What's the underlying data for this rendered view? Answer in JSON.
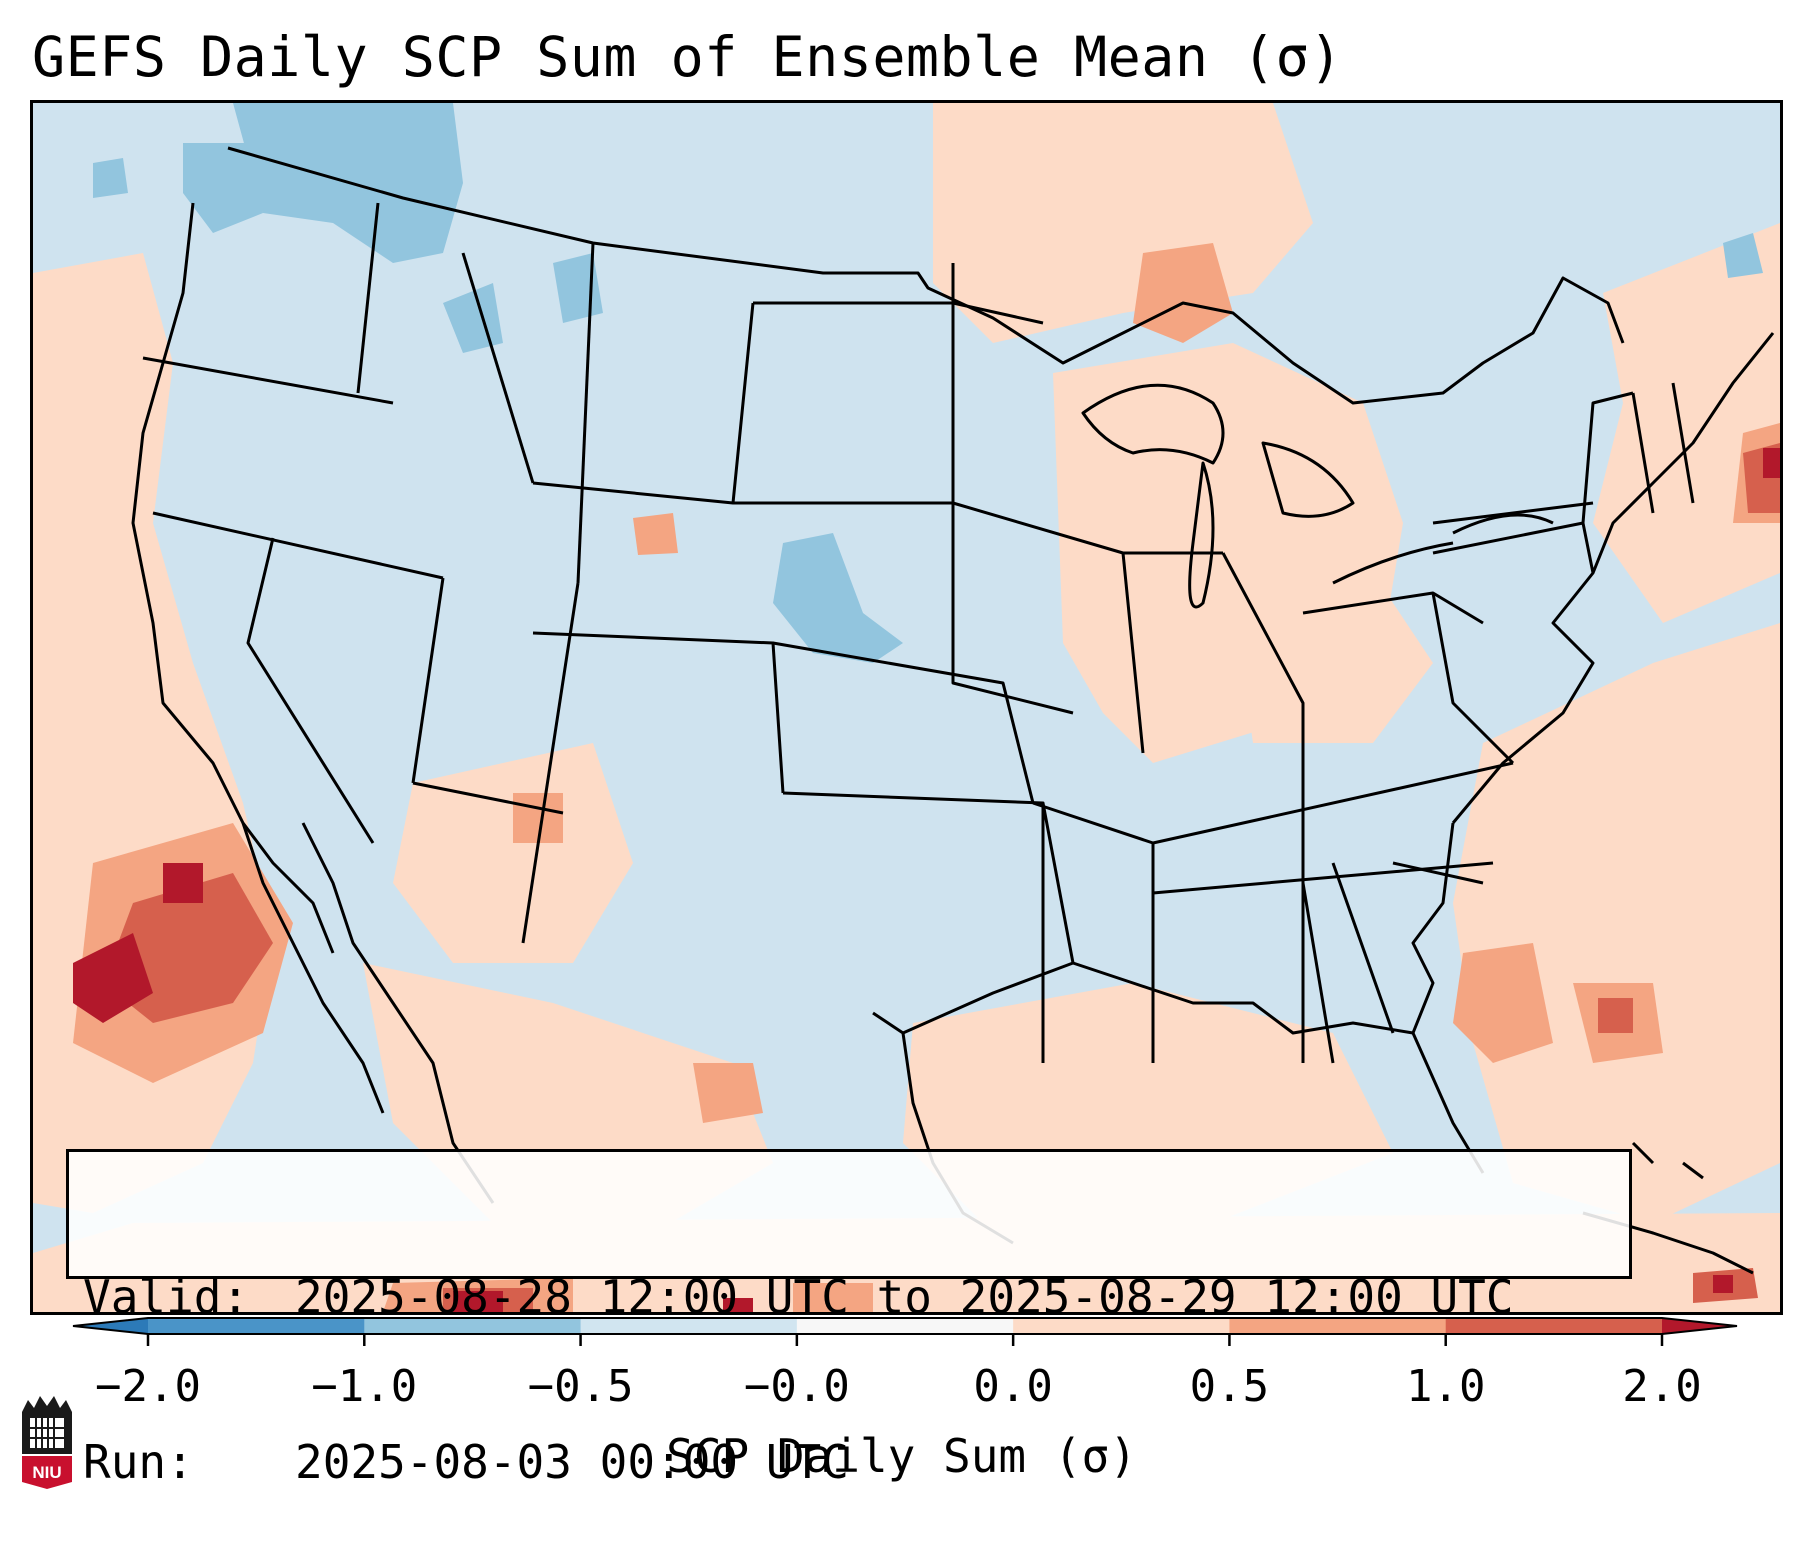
{
  "title": "GEFS Daily SCP Sum of Ensemble Mean (σ)",
  "info": {
    "valid_key": "Valid:",
    "valid_value": "2025-08-28 12:00 UTC to 2025-08-29 12:00 UTC",
    "run_key": "Run:",
    "run_value": "2025-08-03 00:00 UTC"
  },
  "colorbar": {
    "label": "SCP Daily Sum (σ)",
    "ticks": [
      "−2.0",
      "−1.0",
      "−0.5",
      "−0.0",
      "0.0",
      "0.5",
      "1.0",
      "2.0"
    ],
    "bins": [
      {
        "range": "< -2.0",
        "color": "#2c7ab8"
      },
      {
        "range": "-2.0 to -1.0",
        "color": "#4a94c8"
      },
      {
        "range": "-1.0 to -0.5",
        "color": "#92c5de"
      },
      {
        "range": "-0.5 to -0.0",
        "color": "#d1e5f0"
      },
      {
        "range": "-0.0 to 0.0",
        "color": "#f7f7f7"
      },
      {
        "range": "0.0 to 0.5",
        "color": "#fddbc7"
      },
      {
        "range": "0.5 to 1.0",
        "color": "#f4a582"
      },
      {
        "range": "1.0 to 2.0",
        "color": "#d6604d"
      },
      {
        "range": "> 2.0",
        "color": "#b2182b"
      }
    ]
  },
  "map": {
    "region": "Contiguous United States with southern Canada, Mexico, Gulf of Mexico and Caribbean",
    "background_color": "#cfe3ef",
    "anomaly_regions": [
      {
        "area": "Eastern Pacific off Baja California",
        "level": "> 2.0",
        "color": "#b2182b"
      },
      {
        "area": "Eastern Pacific off Baja California",
        "level": "1.0 to 2.0",
        "color": "#d6604d"
      },
      {
        "area": "Western Atlantic off Southeast US coast",
        "level": "0.5 to 1.0",
        "color": "#f4a582"
      },
      {
        "area": "Upper Great Lakes",
        "level": "0.5 to 1.0",
        "color": "#f4a582"
      },
      {
        "area": "Southern New England / Gulf of Maine",
        "level": "1.0 to 2.0",
        "color": "#d6604d"
      },
      {
        "area": "Southern Caribbean / Central America",
        "level": "> 2.0",
        "color": "#b2182b"
      },
      {
        "area": "Pacific Northwest / Southern British Columbia",
        "level": "-1.0 to -0.5",
        "color": "#92c5de"
      },
      {
        "area": "Northern Kansas / Southern Nebraska",
        "level": "-1.0 to -0.5",
        "color": "#92c5de"
      }
    ]
  },
  "logo": {
    "text": "NIU",
    "colors": {
      "primary": "#c8102e",
      "secondary": "#1a1a1a"
    }
  }
}
